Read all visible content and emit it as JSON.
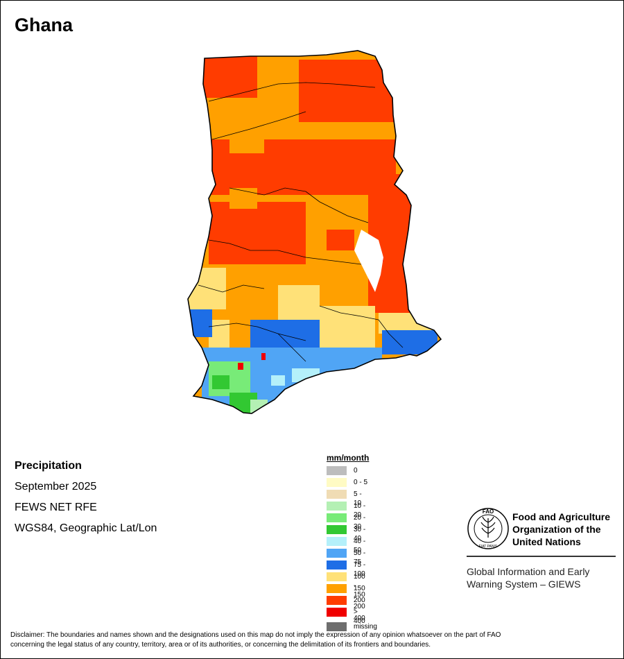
{
  "title": "Ghana",
  "info": {
    "variable": "Precipitation",
    "period": "September 2025",
    "source": "FEWS NET RFE",
    "projection": "WGS84, Geographic Lat/Lon"
  },
  "legend": {
    "unit": "mm/month",
    "classes": [
      {
        "label": "0",
        "color": "#bdbdbd"
      },
      {
        "label": "0 - 5",
        "color": "#fffbc4"
      },
      {
        "label": "5 - 10",
        "color": "#f0dcb4"
      },
      {
        "label": "10 - 20",
        "color": "#b4f0b4"
      },
      {
        "label": "20 - 30",
        "color": "#78eb78"
      },
      {
        "label": "30 - 40",
        "color": "#32c832"
      },
      {
        "label": "40 - 50",
        "color": "#b4f0fa"
      },
      {
        "label": "50 - 75",
        "color": "#50a5f5"
      },
      {
        "label": "75 - 100",
        "color": "#1e6ee6"
      },
      {
        "label": "100 - 150",
        "color": "#ffe178"
      },
      {
        "label": "150 - 200",
        "color": "#ffa000"
      },
      {
        "label": "200 - 400",
        "color": "#ff3c00"
      },
      {
        "label": "> 400",
        "color": "#f00000"
      }
    ],
    "missing": {
      "label": "missing",
      "color": "#6e6e6e"
    }
  },
  "logo": {
    "acronym": "FAO",
    "seal_text": "FIAT PANIS",
    "org_name_lines": [
      "Food and Agriculture",
      "Organization of the",
      "United Nations"
    ],
    "system_lines": [
      "Global Information and Early",
      "Warning System – GIEWS"
    ]
  },
  "disclaimer_lines": [
    "Disclaimer: The boundaries and names shown and the designations used on this map do not imply the expression of any opinion whatsoever on the part of FAO",
    "concerning the legal status of any country, territory, area or of its authorities, or concerning the delimitation of its frontiers and boundaries."
  ]
}
